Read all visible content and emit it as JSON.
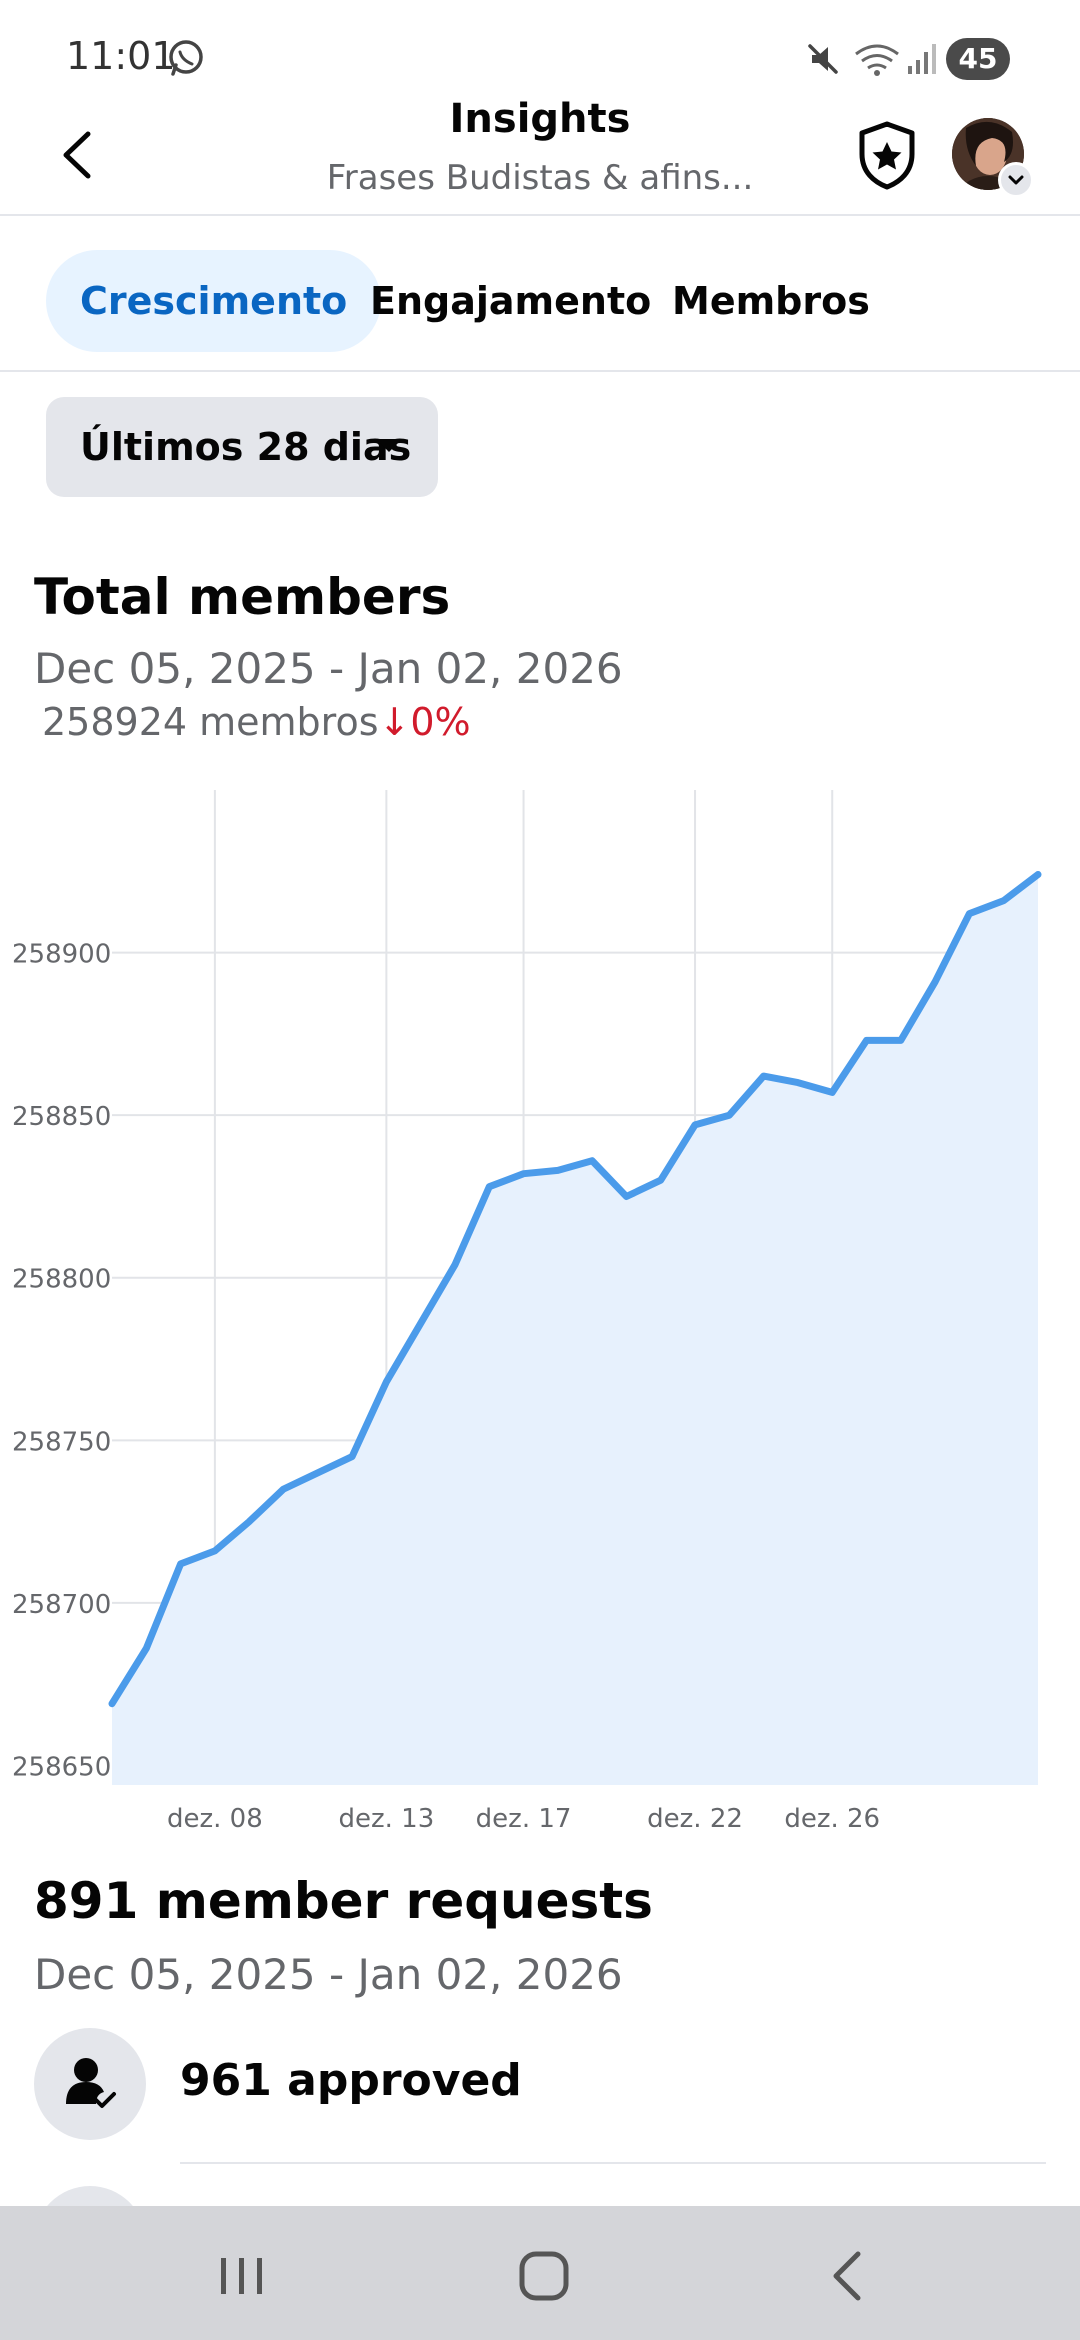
{
  "status_bar": {
    "time": "11:01",
    "battery": "45",
    "icons": [
      "whatsapp-icon",
      "mute-icon",
      "wifi-icon",
      "signal-icon",
      "battery-icon"
    ]
  },
  "header": {
    "title": "Insights",
    "subtitle": "Frases Budistas & afins..."
  },
  "tabs": [
    {
      "label": "Crescimento",
      "active": true
    },
    {
      "label": "Engajamento",
      "active": false
    },
    {
      "label": "Membros",
      "active": false
    }
  ],
  "range": {
    "label": "Últimos 28 dias"
  },
  "total_members": {
    "title": "Total members",
    "date_range": "Dec 05, 2025 - Jan 02, 2026",
    "count_text": "258924 membros",
    "change": "0%",
    "change_direction": "down"
  },
  "chart_data": {
    "type": "area",
    "title": "",
    "xlabel": "",
    "ylabel": "",
    "x_ticks": [
      "dez. 08",
      "dez. 13",
      "dez. 17",
      "dez. 22",
      "dez. 26"
    ],
    "y_ticks": [
      "258650",
      "258700",
      "258750",
      "258800",
      "258850",
      "258900"
    ],
    "ylim": [
      258644,
      258950
    ],
    "grid": true,
    "series": [
      {
        "color": "#4b9bea",
        "fill": "#e7f1fd",
        "values": [
          258669,
          258686,
          258712,
          258716,
          258725,
          258735,
          258740,
          258745,
          258768,
          258786,
          258804,
          258828,
          258832,
          258833,
          258836,
          258825,
          258830,
          258847,
          258850,
          258862,
          258860,
          258857,
          258873,
          258873,
          258891,
          258912,
          258916,
          258924
        ]
      }
    ]
  },
  "member_requests": {
    "title": "891 member requests",
    "date_range": "Dec 05, 2025 - Jan 02, 2026",
    "approved_label": "961 approved"
  },
  "nav": {
    "items": [
      "recents-icon",
      "home-icon",
      "back-icon"
    ]
  },
  "colors": {
    "accent": "#0a66c2",
    "tab_active_bg": "#e7f3ff",
    "negative": "#d11b2c",
    "line": "#4b9bea",
    "area_fill": "#e7f1fd"
  }
}
